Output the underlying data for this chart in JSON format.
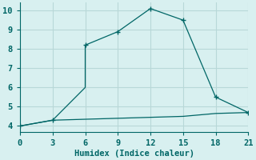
{
  "xlabel": "Humidex (Indice chaleur)",
  "bg_color": "#d8f0f0",
  "grid_color": "#b8d8d8",
  "line_color": "#006666",
  "spine_color": "#006666",
  "line1_x": [
    0,
    3,
    6,
    6,
    9,
    12,
    15,
    18,
    21
  ],
  "line1_y": [
    4.0,
    4.3,
    6.0,
    8.2,
    8.9,
    10.1,
    9.5,
    5.5,
    4.7
  ],
  "line2_x": [
    0,
    3,
    6,
    9,
    12,
    15,
    18,
    21
  ],
  "line2_y": [
    4.0,
    4.3,
    4.35,
    4.4,
    4.45,
    4.5,
    4.65,
    4.7
  ],
  "markers_x": [
    0,
    3,
    6,
    9,
    12,
    15,
    18,
    21
  ],
  "markers_y": [
    4.0,
    4.3,
    8.2,
    8.9,
    10.1,
    9.5,
    5.5,
    4.7
  ],
  "xlim": [
    0,
    21
  ],
  "ylim": [
    3.7,
    10.4
  ],
  "xticks": [
    0,
    3,
    6,
    9,
    12,
    15,
    18,
    21
  ],
  "yticks": [
    4,
    5,
    6,
    7,
    8,
    9,
    10
  ],
  "xlabel_fontsize": 7.5,
  "tick_fontsize": 7.5
}
